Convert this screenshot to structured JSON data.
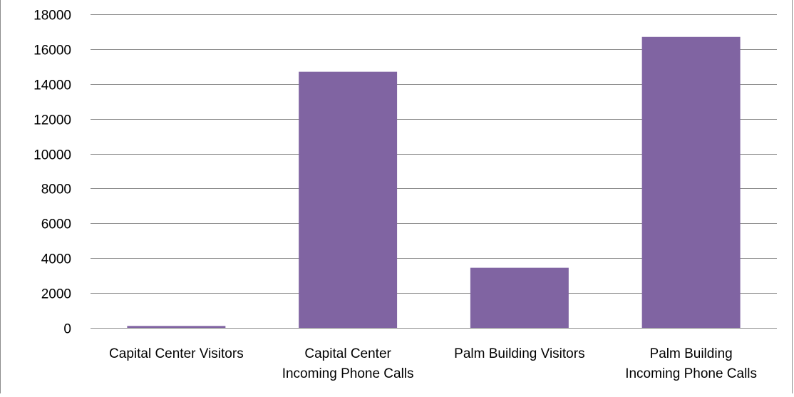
{
  "chart_data": {
    "type": "bar",
    "title": "",
    "xlabel": "",
    "ylabel": "",
    "categories": [
      [
        "Capital Center Visitors"
      ],
      [
        "Capital Center",
        "Incoming Phone Calls"
      ],
      [
        "Palm Building Visitors"
      ],
      [
        "Palm Building",
        "Incoming Phone Calls"
      ]
    ],
    "values": [
      110,
      14700,
      3450,
      16700
    ],
    "ylim": [
      0,
      18000
    ],
    "yticks": [
      "0",
      "2000",
      "4000",
      "6000",
      "8000",
      "10000",
      "12000",
      "14000",
      "16000",
      "18000"
    ],
    "grid": true,
    "legend": "none",
    "bar_color": "#8064a2",
    "gridline_color": "#8c8c8c"
  }
}
